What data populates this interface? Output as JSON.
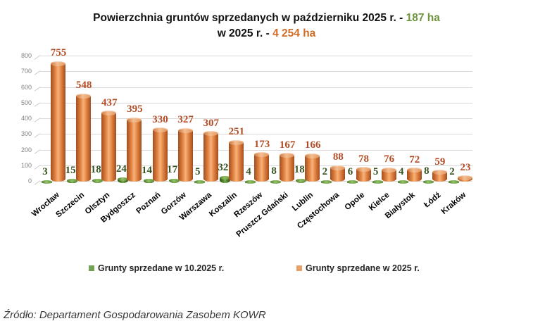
{
  "title": {
    "line1_prefix": "Powierzchnia gruntów sprzedanych w październiku 2025 r. - ",
    "line1_value": "187 ha",
    "line2_prefix": "w 2025 r. - ",
    "line2_value": "4 254 ha",
    "accent_green": "#6F9540",
    "accent_orange": "#D06E28"
  },
  "chart_data": {
    "type": "bar",
    "categories": [
      "Wrocław",
      "Szczecin",
      "Olsztyn",
      "Bydgoszcz",
      "Poznań",
      "Gorzów",
      "Warszawa",
      "Koszalin",
      "Rzeszów",
      "Pruszcz Gdański",
      "Lublin",
      "Częstochowa",
      "Opole",
      "Kielce",
      "Białystok",
      "Łódź",
      "Kraków"
    ],
    "series": [
      {
        "name": "Grunty sprzedane w 10.2025 r.",
        "swatch_color": "#73A257",
        "label_color": "#375422",
        "values": [
          3,
          15,
          18,
          24,
          14,
          17,
          5,
          32,
          4,
          8,
          18,
          2,
          6,
          5,
          4,
          8,
          2
        ]
      },
      {
        "name": "Grunty sprzedane w 2025 r.",
        "swatch_color": "#E9A066",
        "label_color": "#B44D26",
        "values": [
          755,
          548,
          437,
          395,
          330,
          327,
          307,
          251,
          173,
          167,
          166,
          88,
          78,
          76,
          72,
          59,
          23
        ]
      }
    ],
    "ylabel": "",
    "xlabel": "",
    "ylim": [
      0,
      800
    ],
    "yticks": [
      0,
      100,
      200,
      300,
      400,
      500,
      600,
      700,
      800
    ],
    "grid": true,
    "legend_position": "bottom",
    "bar_style": "3d-cylinder"
  },
  "footer": {
    "source": "Źródło: Departament Gospodarowania Zasobem KOWR"
  }
}
